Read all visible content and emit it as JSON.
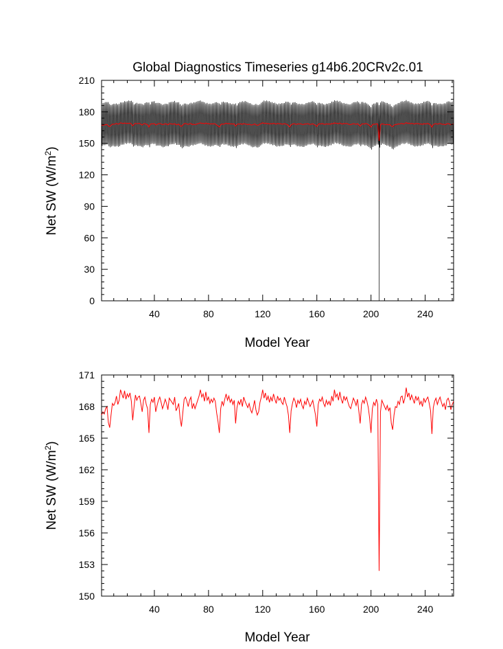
{
  "title": "Global Diagnostics Timeseries g14b6.20CRv2c.01",
  "chart_data": [
    {
      "type": "line",
      "title": "Global Diagnostics Timeseries g14b6.20CRv2c.01",
      "xlabel": "Model Year",
      "ylabel": "Net SW (W/m",
      "ylabel_sup": "2",
      "ylabel_tail": ")",
      "xlim": [
        1,
        261
      ],
      "ylim": [
        0,
        210
      ],
      "xticks": [
        40,
        80,
        120,
        160,
        200,
        240
      ],
      "yticks": [
        0,
        30,
        60,
        90,
        120,
        150,
        180,
        210
      ],
      "grid": false,
      "series": [
        {
          "role": "monthly",
          "color": "#000000",
          "envelope": {
            "min": 143,
            "max": 187
          },
          "dropout": {
            "x": 206,
            "value": 0
          }
        },
        {
          "role": "annual-mean",
          "color": "#ff0000",
          "ref": "annual_mean"
        }
      ]
    },
    {
      "type": "line",
      "xlabel": "Model Year",
      "ylabel": "Net SW (W/m",
      "ylabel_sup": "2",
      "ylabel_tail": ")",
      "xlim": [
        1,
        261
      ],
      "ylim": [
        150,
        171
      ],
      "xticks": [
        40,
        80,
        120,
        160,
        200,
        240
      ],
      "yticks": [
        150,
        153,
        156,
        159,
        162,
        165,
        168,
        171
      ],
      "grid": false,
      "series": [
        {
          "role": "annual-mean",
          "color": "#ff0000",
          "ref": "annual_mean"
        }
      ]
    }
  ],
  "annual_mean": {
    "x_start": 1,
    "values": [
      167.2,
      167.5,
      167.3,
      167.8,
      168.0,
      166.5,
      166.0,
      167.2,
      168.3,
      168.1,
      168.4,
      169.0,
      168.2,
      168.6,
      169.6,
      169.2,
      168.8,
      169.5,
      168.7,
      169.2,
      168.9,
      169.3,
      168.5,
      166.7,
      168.0,
      169.1,
      168.6,
      168.9,
      169.0,
      168.3,
      167.5,
      168.6,
      168.9,
      168.2,
      167.8,
      165.5,
      168.2,
      168.7,
      168.4,
      168.9,
      167.5,
      168.1,
      168.6,
      168.9,
      168.4,
      167.8,
      168.2,
      168.7,
      168.3,
      167.7,
      168.8,
      168.6,
      168.4,
      168.2,
      168.9,
      167.6,
      167.9,
      168.3,
      166.9,
      166.1,
      167.4,
      168.7,
      168.9,
      168.5,
      168.0,
      168.6,
      168.9,
      167.8,
      168.3,
      167.8,
      168.2,
      168.6,
      169.0,
      169.6,
      168.9,
      169.2,
      168.5,
      169.4,
      168.6,
      168.9,
      168.3,
      168.7,
      168.4,
      168.8,
      168.5,
      167.4,
      166.6,
      165.5,
      167.8,
      168.5,
      168.1,
      168.7,
      169.2,
      168.6,
      169.0,
      168.4,
      168.7,
      168.2,
      168.6,
      166.4,
      167.9,
      168.5,
      168.2,
      168.7,
      168.0,
      168.9,
      168.5,
      168.2,
      167.9,
      168.3,
      167.7,
      167.4,
      167.9,
      168.6,
      167.7,
      167.2,
      167.5,
      168.4,
      168.9,
      169.6,
      168.8,
      169.3,
      168.6,
      169.0,
      168.4,
      168.9,
      168.5,
      169.2,
      168.7,
      168.3,
      169.0,
      168.6,
      168.8,
      168.4,
      168.2,
      168.9,
      168.4,
      168.0,
      167.2,
      165.5,
      167.6,
      168.3,
      168.8,
      168.5,
      167.9,
      168.6,
      168.3,
      168.7,
      168.1,
      167.8,
      168.5,
      168.2,
      168.8,
      168.4,
      168.0,
      168.3,
      168.6,
      167.9,
      167.2,
      166.1,
      168.2,
      168.7,
      168.5,
      168.9,
      168.3,
      168.0,
      168.6,
      168.2,
      168.5,
      168.1,
      169.0,
      168.5,
      169.6,
      168.9,
      169.2,
      168.6,
      169.4,
      168.7,
      168.3,
      169.0,
      168.6,
      168.9,
      168.4,
      168.0,
      167.8,
      168.3,
      168.8,
      168.5,
      168.1,
      168.7,
      167.6,
      166.4,
      168.2,
      168.6,
      168.3,
      168.9,
      168.5,
      167.9,
      166.9,
      165.5,
      167.8,
      168.4,
      168.1,
      168.7,
      168.2,
      152.4,
      167.5,
      168.6,
      168.3,
      168.0,
      167.7,
      168.1,
      167.6,
      167.9,
      166.4,
      165.8,
      167.2,
      168.0,
      167.9,
      168.5,
      168.2,
      168.9,
      169.0,
      168.3,
      168.8,
      169.8,
      168.9,
      169.3,
      168.6,
      169.1,
      168.7,
      168.3,
      169.0,
      168.6,
      168.9,
      168.2,
      168.5,
      168.0,
      168.8,
      168.4,
      168.7,
      168.9,
      168.3,
      167.6,
      165.4,
      167.9,
      168.5,
      168.8,
      168.2,
      168.6,
      168.9,
      168.4,
      168.0,
      168.3,
      167.7,
      168.6,
      168.8,
      168.4,
      167.7,
      168.2,
      168.5
    ]
  }
}
